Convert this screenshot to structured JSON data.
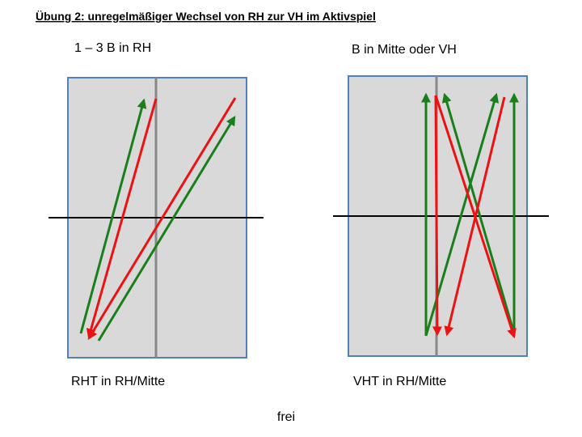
{
  "title": "Übung 2: unregelmäßiger Wechsel von RH zur VH im Aktivspiel",
  "left": {
    "top_label": "1 – 3 B in RH",
    "bottom_label": "RHT in RH/Mitte"
  },
  "right": {
    "top_label": "B in Mitte oder VH",
    "bottom_label": "VHT in RH/Mitte"
  },
  "footer": "frei"
}
